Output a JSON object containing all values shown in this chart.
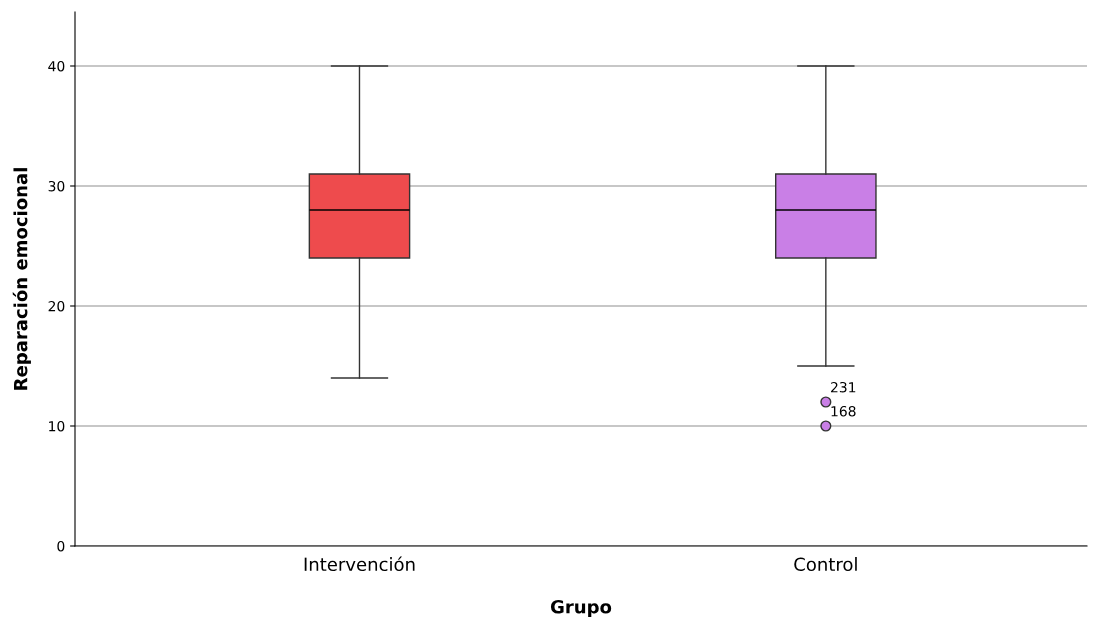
{
  "chart_data": {
    "type": "box",
    "xlabel": "Grupo",
    "ylabel": "Reparación emocional",
    "categories": [
      "Intervención",
      "Control"
    ],
    "colors": [
      "#ee4b4d",
      "#c97fe6"
    ],
    "boxes": [
      {
        "low": 14,
        "q1": 24,
        "median": 28,
        "q3": 31,
        "high": 40
      },
      {
        "low": 15,
        "q1": 24,
        "median": 28,
        "q3": 31,
        "high": 40,
        "outliers": [
          12,
          10
        ]
      }
    ],
    "annotations": [
      "231",
      "168"
    ],
    "ylim": [
      0,
      44.5
    ],
    "yticks": [
      0,
      10,
      20,
      30,
      40
    ],
    "grid": "y"
  }
}
